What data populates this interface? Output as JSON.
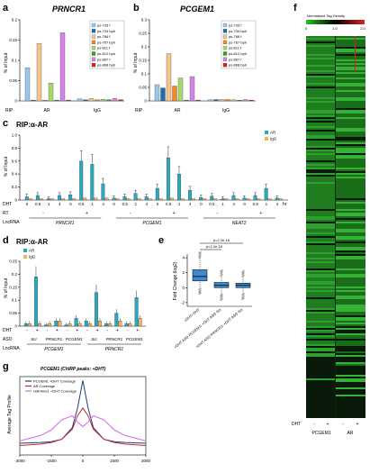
{
  "colors": {
    "ps7331": "#9cc6e8",
    "ps7341": "#1f6fa3",
    "ps7661": "#f4c48b",
    "ps7671": "#ef8a2a",
    "ps8111": "#a7d86b",
    "ps8121": "#3b9a2f",
    "ps8671": "#d783e6",
    "ps8681": "#d91e1e",
    "ar": "#2aa8c2",
    "igg": "#f0b25a",
    "heat_low": "#2c8a2c",
    "heat_mid": "#000000",
    "heat_high": "#d92020",
    "box": "#3f89cc",
    "line_pcgem": "#1d3b87",
    "line_ar": "#c1272d",
    "line_h3k4": "#d36be3"
  },
  "panel_a": {
    "letter": "a",
    "title": "PRNCR1",
    "ylabel": "% of Input",
    "yticks": [
      "0",
      "0.05",
      "0.1",
      "0.15",
      "0.2"
    ],
    "legend": [
      "ps-733 f",
      "ps-734 bph",
      "ps-766 f",
      "ps-767 bph",
      "ps-811 f",
      "ps-812 bph",
      "ps-867 f",
      "ps-868 bph"
    ],
    "groups": [
      "AR",
      "IgG"
    ],
    "rip": "RIP",
    "chart_data": {
      "type": "bar",
      "categories": [
        "AR",
        "IgG"
      ],
      "ylim": [
        0,
        0.2
      ],
      "series": [
        {
          "name": "ps-733 f",
          "values": [
            0.082,
            0.005
          ]
        },
        {
          "name": "ps-734 bph",
          "values": [
            0.002,
            0.003
          ]
        },
        {
          "name": "ps-766 f",
          "values": [
            0.142,
            0.006
          ]
        },
        {
          "name": "ps-767 bph",
          "values": [
            0.002,
            0.003
          ]
        },
        {
          "name": "ps-811 f",
          "values": [
            0.044,
            0.004
          ]
        },
        {
          "name": "ps-812 bph",
          "values": [
            0.002,
            0.003
          ]
        },
        {
          "name": "ps-867 f",
          "values": [
            0.168,
            0.006
          ]
        },
        {
          "name": "ps-868 bph",
          "values": [
            0.002,
            0.003
          ]
        }
      ]
    }
  },
  "panel_b": {
    "letter": "b",
    "title": "PCGEM1",
    "ylabel": "% of Input",
    "yticks": [
      "0",
      "0.05",
      "0.1",
      "0.15",
      "0.2",
      "0.25",
      "0.3"
    ],
    "legend": [
      "ps-733 f",
      "ps-734 bph",
      "ps-766 f",
      "ps-767 bph",
      "ps-811 f",
      "ps-812 bph",
      "ps-867 f",
      "ps-868 bph"
    ],
    "groups": [
      "AR",
      "IgG"
    ],
    "rip": "RIP",
    "chart_data": {
      "type": "bar",
      "categories": [
        "AR",
        "IgG"
      ],
      "ylim": [
        0,
        0.3
      ],
      "series": [
        {
          "name": "ps-733 f",
          "values": [
            0.06,
            0.004
          ]
        },
        {
          "name": "ps-734 bph",
          "values": [
            0.048,
            0.005
          ]
        },
        {
          "name": "ps-766 f",
          "values": [
            0.175,
            0.006
          ]
        },
        {
          "name": "ps-767 bph",
          "values": [
            0.055,
            0.005
          ]
        },
        {
          "name": "ps-811 f",
          "values": [
            0.085,
            0.004
          ]
        },
        {
          "name": "ps-812 bph",
          "values": [
            0.003,
            0.003
          ]
        },
        {
          "name": "ps-867 f",
          "values": [
            0.09,
            0.005
          ]
        },
        {
          "name": "ps-868 bph",
          "values": [
            0.003,
            0.003
          ]
        }
      ]
    }
  },
  "panel_c": {
    "letter": "c",
    "title": "RIP:α-AR",
    "ylabel": "% of Input",
    "yticks": [
      "0",
      "0.2",
      "0.4",
      "0.6",
      "0.8",
      "1.0"
    ],
    "legend": [
      "AR",
      "IgG"
    ],
    "dht_label": "DHT",
    "rt_label": "RT",
    "lnc_label": "LncRNA",
    "hr": "hr",
    "dht_vals": [
      "0",
      "0.5",
      "1",
      "4",
      "0",
      "0.5",
      "1",
      "4",
      "0",
      "0.5",
      "1",
      "4",
      "0",
      "0.5",
      "1",
      "4",
      "0",
      "0.5",
      "1",
      "4",
      "0",
      "0.5",
      "1",
      "4"
    ],
    "rt_vals": [
      "-",
      "+",
      "-",
      "+",
      "-",
      "+"
    ],
    "lnc": [
      "PRNCR1",
      "PCGEM1",
      "NEAT2"
    ],
    "chart_data": {
      "type": "bar",
      "ylim": [
        0,
        1.0
      ],
      "series": [
        {
          "name": "AR",
          "values": [
            0.05,
            0.07,
            0.02,
            0.07,
            0.08,
            0.6,
            0.55,
            0.25,
            0.03,
            0.05,
            0.1,
            0.05,
            0.18,
            0.65,
            0.4,
            0.15,
            0.04,
            0.06,
            0.02,
            0.07,
            0.03,
            0.07,
            0.18,
            0.03
          ]
        },
        {
          "name": "IgG",
          "values": [
            0.02,
            0.02,
            0.02,
            0.02,
            0.02,
            0.03,
            0.03,
            0.03,
            0.02,
            0.02,
            0.02,
            0.02,
            0.02,
            0.03,
            0.02,
            0.02,
            0.02,
            0.02,
            0.02,
            0.02,
            0.02,
            0.02,
            0.02,
            0.02
          ]
        }
      ]
    }
  },
  "panel_d": {
    "letter": "d",
    "title": "RIP:α-AR",
    "ylabel": "% of Input",
    "yticks": [
      "0",
      "0.05",
      "0.1",
      "0.15",
      "0.2",
      "0.25"
    ],
    "legend": [
      "AR",
      "IgG"
    ],
    "dht_label": "DHT",
    "asd_label": "ASO",
    "lnc_label": "LncRNA",
    "dht_vals": [
      "-",
      "+",
      "-",
      "+",
      "-",
      "+",
      "-",
      "+",
      "-",
      "+",
      "-",
      "+"
    ],
    "asd_vals": [
      "Scr",
      "PRNCR1",
      "PCGEM1",
      "Scr",
      "PRNCR1",
      "PCGEM1"
    ],
    "lnc": [
      "PCGEM1",
      "PRNCR1"
    ],
    "chart_data": {
      "type": "bar",
      "ylim": [
        0,
        0.25
      ],
      "series": [
        {
          "name": "AR",
          "values": [
            0.01,
            0.19,
            0.005,
            0.02,
            0.005,
            0.03,
            0.02,
            0.13,
            0.01,
            0.05,
            0.01,
            0.11
          ]
        },
        {
          "name": "IgG",
          "values": [
            0.01,
            0.01,
            0.01,
            0.02,
            0.01,
            0.01,
            0.01,
            0.02,
            0.01,
            0.02,
            0.01,
            0.03
          ]
        }
      ]
    }
  },
  "panel_e": {
    "letter": "e",
    "ylabel": "Fold Change (log2)",
    "yticks": [
      "4",
      "2",
      "0",
      "-2"
    ],
    "p1": "p<2.2e-16",
    "p2": "p<2.2e-16",
    "categories": [
      "+DHT/-DHT",
      "+DHT ASO PCGEM1/ +DHT ASO Scr",
      "+DHT ASO PRNCR1/ +DHT ASO Scr"
    ],
    "chart_data": {
      "type": "box",
      "ylim": [
        -2.5,
        4.5
      ],
      "boxes": [
        {
          "name": "+DHT/-DHT",
          "q1": 0.9,
          "median": 1.5,
          "q3": 2.4,
          "lower": 0.0,
          "upper": 3.9
        },
        {
          "name": "+DHT ASO PCGEM1/ +DHT ASO Scr",
          "q1": 0.0,
          "median": 0.3,
          "q3": 0.7,
          "lower": -0.8,
          "upper": 1.5
        },
        {
          "name": "+DHT ASO PRNCR1/ +DHT ASO Scr",
          "q1": 0.0,
          "median": 0.3,
          "q3": 0.6,
          "lower": -0.7,
          "upper": 1.4
        }
      ]
    }
  },
  "panel_f": {
    "letter": "f",
    "scale_title": "Normalized Tag Density",
    "scale_ticks": [
      "0",
      "1.0",
      "2.0"
    ],
    "dht_label": "DHT",
    "dht_vals": [
      "-",
      "+",
      "-",
      "+"
    ],
    "groups": [
      "PCGEM1",
      "AR"
    ]
  },
  "panel_g": {
    "letter": "g",
    "title": "PCGEM1 (ChIRP peaks: +DHT)",
    "ylabel": "Average Tag Profile",
    "xticks": [
      "-3000",
      "-1500",
      "0",
      "1500",
      "3000"
    ],
    "legend": [
      "PCGEM1 +DHT Coverage",
      "AR Coverage",
      "H3K4me1 +DHT Coverage"
    ],
    "chart_data": {
      "type": "line",
      "xlim": [
        -3000,
        3000
      ],
      "x": [
        -3000,
        -2000,
        -1500,
        -1000,
        -500,
        -250,
        0,
        250,
        500,
        1000,
        1500,
        2000,
        3000
      ],
      "series": [
        {
          "name": "PCGEM1 +DHT Coverage",
          "values": [
            0.15,
            0.16,
            0.17,
            0.2,
            0.35,
            0.6,
            0.95,
            0.6,
            0.35,
            0.2,
            0.17,
            0.16,
            0.15
          ]
        },
        {
          "name": "AR Coverage",
          "values": [
            0.12,
            0.14,
            0.16,
            0.2,
            0.33,
            0.5,
            0.6,
            0.5,
            0.33,
            0.2,
            0.16,
            0.14,
            0.12
          ]
        },
        {
          "name": "H3K4me1 +DHT Coverage",
          "values": [
            0.18,
            0.25,
            0.32,
            0.45,
            0.5,
            0.42,
            0.36,
            0.42,
            0.5,
            0.45,
            0.32,
            0.25,
            0.18
          ]
        }
      ]
    }
  }
}
